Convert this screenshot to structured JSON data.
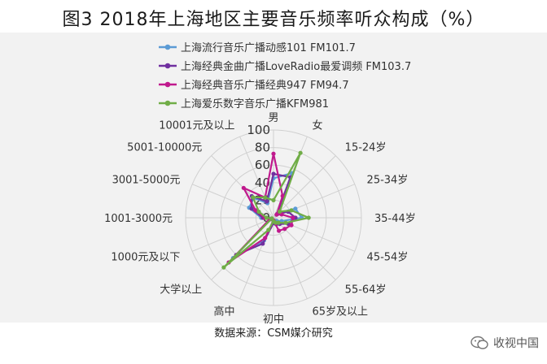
{
  "title": "图3 2018年上海地区主要音乐频率听众构成（%）",
  "source": "数据来源：CSM媒介研究",
  "watermark": "收视中国",
  "chart_data": {
    "type": "radar",
    "axes": [
      "男",
      "女",
      "15-24岁",
      "25-34岁",
      "35-44岁",
      "45-54岁",
      "55-64岁",
      "65岁及以上",
      "初中",
      "高中",
      "大学以上",
      "1000元及以下",
      "1001-3000元",
      "3001-5000元",
      "5001-10000元",
      "10001元及以上"
    ],
    "rlim": [
      0,
      100
    ],
    "ticks": [
      0,
      20,
      40,
      60,
      80,
      100
    ],
    "grid": true,
    "legend_position": "top-left",
    "series": [
      {
        "name": "上海流行音乐广播动感101 FM101.7",
        "color": "#5b9bd5",
        "values": [
          45,
          55,
          8,
          27,
          32,
          10,
          5,
          4,
          5,
          28,
          65,
          3,
          14,
          30,
          32,
          18
        ]
      },
      {
        "name": "上海经典金曲广播LoveRadio最爱调频 FM103.7",
        "color": "#7030a0",
        "values": [
          50,
          50,
          6,
          18,
          25,
          18,
          10,
          8,
          6,
          32,
          60,
          4,
          12,
          27,
          35,
          20
        ]
      },
      {
        "name": "上海经典音乐广播经典947 FM94.7",
        "color": "#c0198d",
        "values": [
          73,
          27,
          5,
          10,
          22,
          22,
          18,
          16,
          3,
          25,
          72,
          5,
          10,
          22,
          48,
          25
        ]
      },
      {
        "name": "上海爱乐数字音乐广播KFM981",
        "color": "#70ad47",
        "values": [
          20,
          80,
          10,
          22,
          40,
          15,
          8,
          6,
          4,
          15,
          80,
          2,
          8,
          18,
          33,
          25
        ]
      }
    ]
  }
}
